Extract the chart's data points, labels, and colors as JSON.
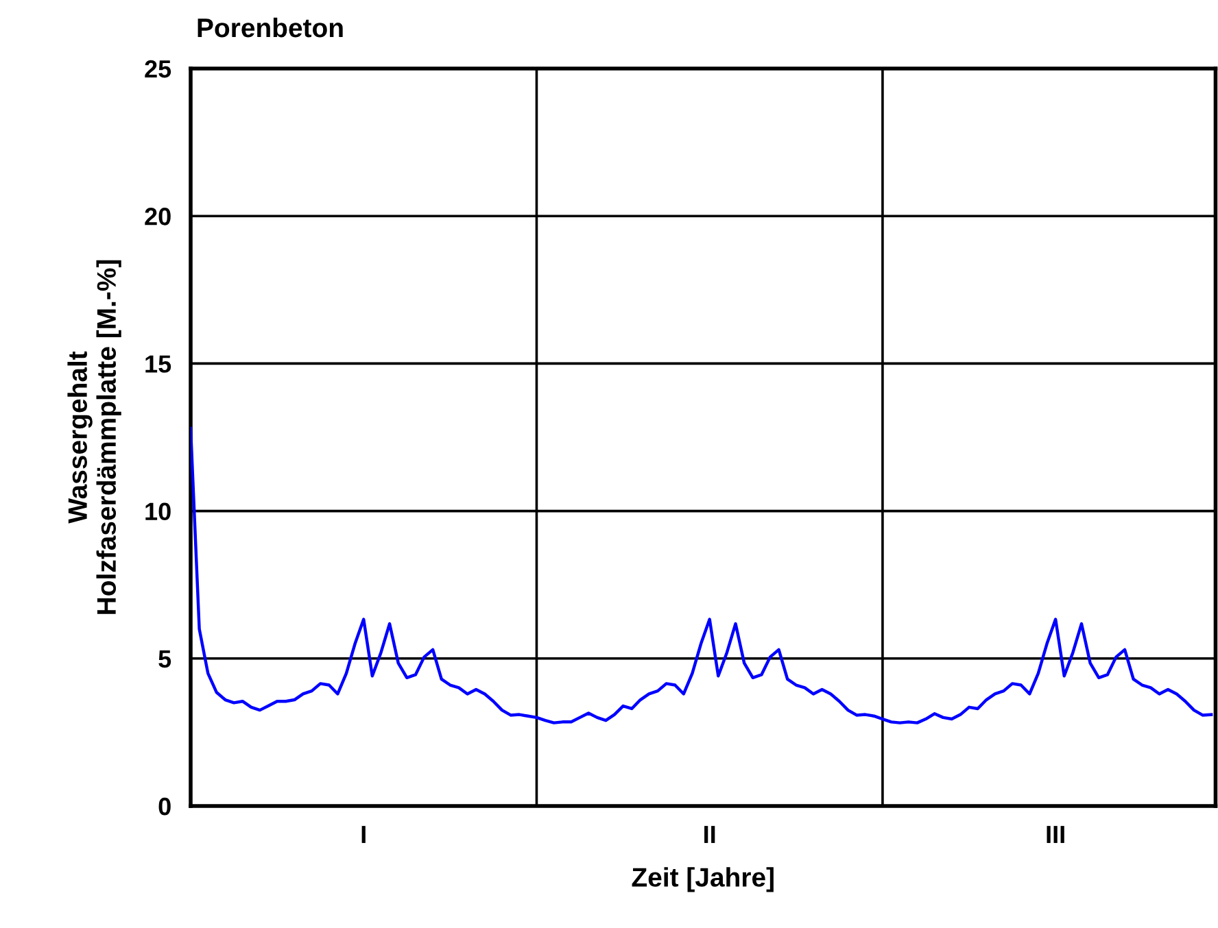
{
  "chart_data": {
    "type": "line",
    "title": "Porenbeton",
    "xlabel": "Zeit [Jahre]",
    "ylabel": "Wassergehalt\nHolzfaserdämmplatte [M.-%]",
    "categories": [
      null,
      null,
      null,
      null,
      null,
      null,
      null,
      null,
      null,
      null,
      null,
      null,
      null,
      null,
      null,
      null,
      null,
      null,
      null,
      null,
      "I",
      null,
      null,
      null,
      null,
      null,
      null,
      null,
      null,
      null,
      null,
      null,
      null,
      null,
      null,
      null,
      null,
      null,
      null,
      null,
      null,
      null,
      null,
      null,
      null,
      null,
      null,
      null,
      null,
      null,
      null,
      null,
      null,
      null,
      null,
      null,
      null,
      null,
      null,
      null,
      "II",
      null,
      null,
      null,
      null,
      null,
      null,
      null,
      null,
      null,
      null,
      null,
      null,
      null,
      null,
      null,
      null,
      null,
      null,
      null,
      null,
      null,
      null,
      null,
      null,
      null,
      null,
      null,
      null,
      null,
      null,
      null,
      null,
      null,
      null,
      null,
      null,
      null,
      null,
      null,
      "III",
      null,
      null,
      null,
      null,
      null,
      null,
      null,
      null,
      null,
      null,
      null,
      null,
      null,
      null,
      null,
      null,
      null,
      null
    ],
    "series": [
      {
        "color": "#0000ff",
        "values": [
          12.8,
          6.0,
          4.5,
          3.85,
          3.6,
          3.5,
          3.55,
          3.35,
          3.25,
          3.4,
          3.55,
          3.55,
          3.6,
          3.8,
          3.9,
          4.15,
          4.1,
          3.8,
          4.5,
          5.5,
          6.33,
          4.41,
          5.2,
          6.18,
          4.85,
          4.35,
          4.45,
          5.05,
          5.3,
          4.3,
          4.1,
          4.01,
          3.8,
          3.95,
          3.8,
          3.55,
          3.25,
          3.08,
          3.1,
          3.05,
          3.0,
          2.9,
          2.82,
          2.85,
          2.85,
          3.0,
          3.15,
          3.0,
          2.9,
          3.1,
          3.39,
          3.3,
          3.6,
          3.8,
          3.9,
          4.15,
          4.1,
          3.8,
          4.5,
          5.5,
          6.33,
          4.41,
          5.2,
          6.18,
          4.85,
          4.35,
          4.45,
          5.05,
          5.3,
          4.3,
          4.1,
          4.01,
          3.8,
          3.95,
          3.8,
          3.55,
          3.25,
          3.08,
          3.1,
          3.05,
          2.95,
          2.85,
          2.82,
          2.85,
          2.82,
          2.95,
          3.13,
          3.0,
          2.95,
          3.1,
          3.35,
          3.3,
          3.6,
          3.8,
          3.9,
          4.15,
          4.1,
          3.8,
          4.5,
          5.5,
          6.33,
          4.41,
          5.2,
          6.18,
          4.85,
          4.35,
          4.45,
          5.05,
          5.3,
          4.3,
          4.1,
          4.01,
          3.8,
          3.95,
          3.8,
          3.55,
          3.25,
          3.08,
          3.1
        ]
      }
    ],
    "ylim": [
      0,
      25
    ],
    "yticks": [
      0,
      5,
      10,
      15,
      20,
      25
    ],
    "grid": "y"
  }
}
